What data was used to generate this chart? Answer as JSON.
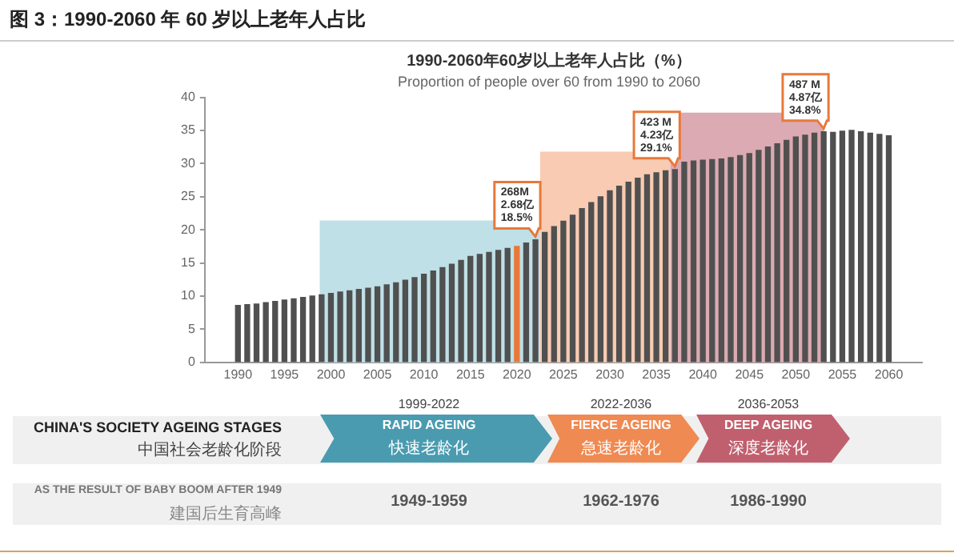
{
  "chart_data": [
    {
      "type": "bar",
      "title": "1990-2060年60岁以上老年人占比（%）",
      "subtitle": "Proportion of people over 60 from 1990 to 2060",
      "x": [
        1990,
        1991,
        1992,
        1993,
        1994,
        1995,
        1996,
        1997,
        1998,
        1999,
        2000,
        2001,
        2002,
        2003,
        2004,
        2005,
        2006,
        2007,
        2008,
        2009,
        2010,
        2011,
        2012,
        2013,
        2014,
        2015,
        2016,
        2017,
        2018,
        2019,
        2020,
        2021,
        2022,
        2023,
        2024,
        2025,
        2026,
        2027,
        2028,
        2029,
        2030,
        2031,
        2032,
        2033,
        2034,
        2035,
        2036,
        2037,
        2038,
        2039,
        2040,
        2041,
        2042,
        2043,
        2044,
        2045,
        2046,
        2047,
        2048,
        2049,
        2050,
        2051,
        2052,
        2053,
        2054,
        2055,
        2056,
        2057,
        2058,
        2059,
        2060
      ],
      "values": [
        8.6,
        8.7,
        8.8,
        9.0,
        9.2,
        9.4,
        9.6,
        9.8,
        10.0,
        10.2,
        10.4,
        10.6,
        10.8,
        11.0,
        11.2,
        11.4,
        11.7,
        12.0,
        12.4,
        12.8,
        13.3,
        13.8,
        14.3,
        14.8,
        15.4,
        16.0,
        16.3,
        16.6,
        16.9,
        17.2,
        17.5,
        18.0,
        18.5,
        19.6,
        20.5,
        21.3,
        22.2,
        23.2,
        24.1,
        25.0,
        25.9,
        26.6,
        27.2,
        27.8,
        28.3,
        28.6,
        28.9,
        29.1,
        30.2,
        30.4,
        30.5,
        30.6,
        30.7,
        30.9,
        31.2,
        31.5,
        32.0,
        32.5,
        33.0,
        33.5,
        34.0,
        34.3,
        34.6,
        34.8,
        34.7,
        34.9,
        35.0,
        34.8,
        34.6,
        34.4,
        34.2
      ],
      "colors": [
        "#505050",
        "#505050",
        "#505050",
        "#505050",
        "#505050",
        "#505050",
        "#505050",
        "#505050",
        "#505050",
        "#505050",
        "#505050",
        "#505050",
        "#505050",
        "#505050",
        "#505050",
        "#505050",
        "#505050",
        "#505050",
        "#505050",
        "#505050",
        "#505050",
        "#505050",
        "#505050",
        "#505050",
        "#505050",
        "#505050",
        "#505050",
        "#505050",
        "#505050",
        "#505050",
        "#e8793a",
        "#505050",
        "#505050",
        "#505050",
        "#505050",
        "#505050",
        "#505050",
        "#505050",
        "#505050",
        "#505050",
        "#505050",
        "#505050",
        "#505050",
        "#505050",
        "#505050",
        "#505050",
        "#505050",
        "#505050",
        "#505050",
        "#505050",
        "#505050",
        "#505050",
        "#505050",
        "#505050",
        "#505050",
        "#505050",
        "#505050",
        "#505050",
        "#505050",
        "#505050",
        "#505050",
        "#505050",
        "#505050",
        "#505050",
        "#505050",
        "#505050",
        "#505050",
        "#505050",
        "#505050",
        "#505050",
        "#505050"
      ],
      "xlim": [
        1989,
        2061
      ],
      "xticks": [
        1990,
        1995,
        2000,
        2005,
        2010,
        2015,
        2020,
        2025,
        2030,
        2035,
        2040,
        2045,
        2050,
        2055,
        2060
      ],
      "ylim": [
        0,
        40
      ],
      "yticks": [
        0,
        5,
        10,
        15,
        20,
        25,
        30,
        35,
        40
      ],
      "grid": false,
      "bands": [
        {
          "axis": "x",
          "from": 1998.8,
          "to": 2022.5,
          "color": "#bfe0e6"
        },
        {
          "axis": "x",
          "from": 2022.5,
          "to": 2036.5,
          "color": "#f8cbb2"
        },
        {
          "axis": "x",
          "from": 2036.5,
          "to": 2053,
          "color": "#dcaab2"
        }
      ],
      "annotations": [
        "图 3：1990-2060 年 60 岁以上老年人占比",
        {
          "text": "268M\n2.68亿\n18.5%",
          "x": 2022,
          "y": 18.5
        },
        {
          "text": "423 M\n4.23亿\n29.1%",
          "x": 2037,
          "y": 29.1
        },
        {
          "text": "487 M\n4.87亿\n34.8%",
          "x": 2053,
          "y": 34.8
        }
      ]
    },
    {
      "type": "other",
      "annotations": [
        "CHINA'S SOCIETY AGEING STAGES",
        "中国社会老龄化阶段",
        "1999-2022",
        "RAPID AGEING",
        "快速老龄化",
        "2022-2036",
        "FIERCE AGEING",
        "急速老龄化",
        "2036-2053",
        "DEEP AGEING",
        "深度老龄化",
        "AS THE RESULT OF BABY BOOM AFTER 1949",
        "建国后生育高峰",
        "1949-1959",
        "1962-1976",
        "1986-1990"
      ]
    }
  ]
}
